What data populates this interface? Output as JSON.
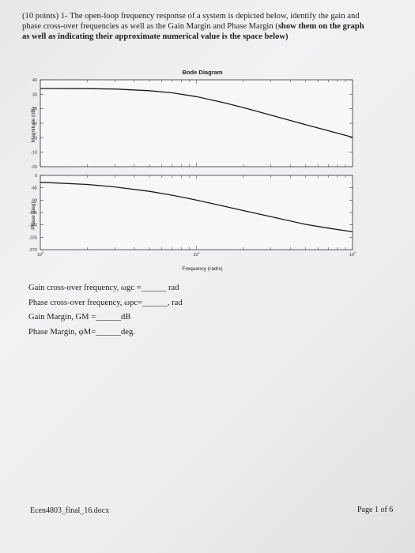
{
  "question": {
    "line1": "(10 points) 1- The open-loop frequency response of a system is depicted below, identify the gain and",
    "line2": "phase cross-over frequencies as well as the Gain Margin and Phase Margin (",
    "line2_bold": "show them on the graph",
    "line3_bold": "as well as indicating their approximate numerical value is the space below)"
  },
  "chart_data": {
    "type": "line",
    "title": "Bode Diagram",
    "xlabel": "Frequency  (rad/s)",
    "xscale": "log",
    "xlim": [
      1,
      100
    ],
    "xticks": [
      "10^0",
      "10^1",
      "10^2"
    ],
    "panels": [
      {
        "name": "magnitude",
        "ylabel": "Magnitude (dB)",
        "ylim": [
          -20,
          40
        ],
        "yticks": [
          40,
          30,
          20,
          10,
          0,
          -10,
          -20
        ],
        "series": [
          {
            "x": [
              1,
              2,
              3,
              5,
              7,
              10,
              15,
              20,
              30,
              50,
              70,
              100
            ],
            "y": [
              34,
              33.9,
              33.6,
              32.5,
              31.0,
              28.4,
              24.2,
              20.8,
              15.6,
              9.0,
              4.8,
              0.3
            ]
          }
        ]
      },
      {
        "name": "phase",
        "ylabel": "Phase (deg)",
        "ylim": [
          -270,
          0
        ],
        "yticks": [
          0,
          -45,
          -90,
          -135,
          -180,
          -225,
          -270
        ],
        "series": [
          {
            "x": [
              1,
              2,
              3,
              5,
              7,
              10,
              15,
              20,
              30,
              50,
              70,
              100
            ],
            "y": [
              -25,
              -33,
              -42,
              -58,
              -72,
              -90,
              -112,
              -128,
              -150,
              -178,
              -192,
              -205
            ]
          }
        ]
      }
    ]
  },
  "blanks": {
    "wgc_label": "Gain cross-over frequency, ωgc =______ rad",
    "wpc_label": "Phase cross-over frequency, ωpc=______, rad",
    "gm_label": "Gain Margin, GM =______dB",
    "pm_label": "Phase Margin, φM=______deg."
  },
  "footer": {
    "filename": "Ecen4803_final_16.docx",
    "page": "Page 1 of 6"
  }
}
